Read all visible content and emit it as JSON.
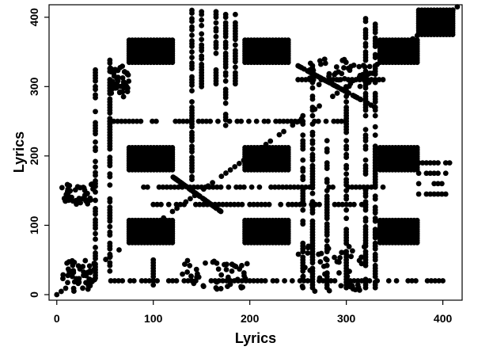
{
  "chart_data": {
    "type": "scatter",
    "title": "",
    "xlabel": "Lyrics",
    "ylabel": "Lyrics",
    "xlim": [
      -8,
      420
    ],
    "ylim": [
      -8,
      418
    ],
    "xticks": [
      0,
      100,
      200,
      300,
      400
    ],
    "yticks": [
      0,
      100,
      200,
      300,
      400
    ],
    "grid": false,
    "legend": "none",
    "marker_color": "#000000",
    "blocks": [
      {
        "x": [
          75,
          120
        ],
        "y": [
          75,
          110
        ]
      },
      {
        "x": [
          75,
          120
        ],
        "y": [
          180,
          215
        ]
      },
      {
        "x": [
          75,
          120
        ],
        "y": [
          335,
          370
        ]
      },
      {
        "x": [
          195,
          240
        ],
        "y": [
          75,
          110
        ]
      },
      {
        "x": [
          195,
          240
        ],
        "y": [
          180,
          215
        ]
      },
      {
        "x": [
          195,
          240
        ],
        "y": [
          335,
          370
        ]
      },
      {
        "x": [
          335,
          375
        ],
        "y": [
          75,
          110
        ]
      },
      {
        "x": [
          335,
          375
        ],
        "y": [
          180,
          215
        ]
      },
      {
        "x": [
          335,
          375
        ],
        "y": [
          335,
          370
        ]
      },
      {
        "x": [
          375,
          412
        ],
        "y": [
          375,
          412
        ]
      }
    ],
    "columns": [
      {
        "x": 140,
        "y": [
          150,
          410
        ]
      },
      {
        "x": 150,
        "y": [
          300,
          410
        ]
      },
      {
        "x": 165,
        "y": [
          300,
          410
        ]
      },
      {
        "x": 175,
        "y": [
          240,
          410
        ]
      },
      {
        "x": 185,
        "y": [
          300,
          410
        ]
      },
      {
        "x": 255,
        "y": [
          10,
          260
        ]
      },
      {
        "x": 265,
        "y": [
          10,
          330
        ]
      },
      {
        "x": 280,
        "y": [
          10,
          240
        ]
      },
      {
        "x": 300,
        "y": [
          10,
          300
        ]
      },
      {
        "x": 320,
        "y": [
          10,
          400
        ]
      },
      {
        "x": 330,
        "y": [
          10,
          390
        ]
      },
      {
        "x": 100,
        "y": [
          10,
          60
        ]
      },
      {
        "x": 55,
        "y": [
          30,
          340
        ]
      },
      {
        "x": 40,
        "y": [
          20,
          330
        ]
      }
    ],
    "rows": [
      {
        "y": 155,
        "x": [
          90,
          340
        ]
      },
      {
        "y": 250,
        "x": [
          55,
          300
        ]
      },
      {
        "y": 20,
        "x": [
          40,
          400
        ]
      },
      {
        "y": 310,
        "x": [
          250,
          340
        ]
      },
      {
        "y": 190,
        "x": [
          375,
          410
        ]
      },
      {
        "y": 175,
        "x": [
          375,
          410
        ]
      },
      {
        "y": 160,
        "x": [
          375,
          410
        ]
      },
      {
        "y": 145,
        "x": [
          375,
          410
        ]
      },
      {
        "y": 130,
        "x": [
          100,
          320
        ]
      }
    ],
    "diagonals": [
      {
        "x": [
          0,
          415
        ],
        "y": [
          0,
          415
        ]
      },
      {
        "x": [
          120,
          170
        ],
        "y": [
          170,
          120
        ]
      },
      {
        "x": [
          250,
          330
        ],
        "y": [
          330,
          270
        ]
      }
    ],
    "clusters": [
      {
        "x": [
          5,
          40
        ],
        "y": [
          130,
          160
        ]
      },
      {
        "x": [
          5,
          40
        ],
        "y": [
          5,
          50
        ]
      },
      {
        "x": [
          130,
          200
        ],
        "y": [
          5,
          50
        ]
      },
      {
        "x": [
          250,
          320
        ],
        "y": [
          5,
          70
        ]
      },
      {
        "x": [
          260,
          330
        ],
        "y": [
          300,
          340
        ]
      },
      {
        "x": [
          55,
          75
        ],
        "y": [
          285,
          330
        ]
      }
    ]
  }
}
